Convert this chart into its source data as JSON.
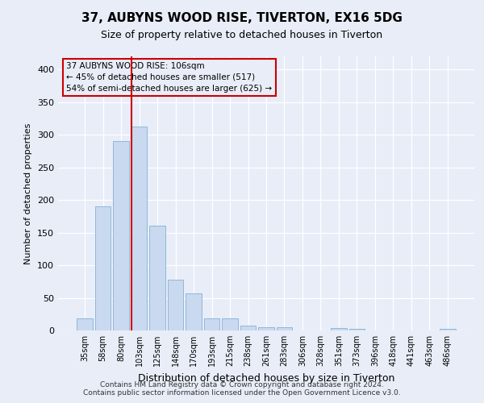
{
  "title": "37, AUBYNS WOOD RISE, TIVERTON, EX16 5DG",
  "subtitle": "Size of property relative to detached houses in Tiverton",
  "xlabel": "Distribution of detached houses by size in Tiverton",
  "ylabel": "Number of detached properties",
  "categories": [
    "35sqm",
    "58sqm",
    "80sqm",
    "103sqm",
    "125sqm",
    "148sqm",
    "170sqm",
    "193sqm",
    "215sqm",
    "238sqm",
    "261sqm",
    "283sqm",
    "306sqm",
    "328sqm",
    "351sqm",
    "373sqm",
    "396sqm",
    "418sqm",
    "441sqm",
    "463sqm",
    "486sqm"
  ],
  "values": [
    19,
    190,
    290,
    312,
    160,
    78,
    57,
    18,
    18,
    7,
    5,
    5,
    0,
    0,
    4,
    3,
    0,
    0,
    0,
    0,
    3
  ],
  "bar_color": "#c9d9f0",
  "bar_edge_color": "#8fb8d8",
  "highlight_color": "#cc0000",
  "highlight_index": 3,
  "annotation_text": "37 AUBYNS WOOD RISE: 106sqm\n← 45% of detached houses are smaller (517)\n54% of semi-detached houses are larger (625) →",
  "ylim": [
    0,
    420
  ],
  "yticks": [
    0,
    50,
    100,
    150,
    200,
    250,
    300,
    350,
    400
  ],
  "footer1": "Contains HM Land Registry data © Crown copyright and database right 2024.",
  "footer2": "Contains public sector information licensed under the Open Government Licence v3.0.",
  "background_color": "#e8edf8",
  "plot_bg_color": "#e8edf8",
  "title_fontsize": 11,
  "subtitle_fontsize": 9,
  "ylabel_fontsize": 8,
  "xlabel_fontsize": 9,
  "tick_fontsize": 7,
  "ytick_fontsize": 8,
  "footer_fontsize": 6.5,
  "ann_fontsize": 7.5
}
